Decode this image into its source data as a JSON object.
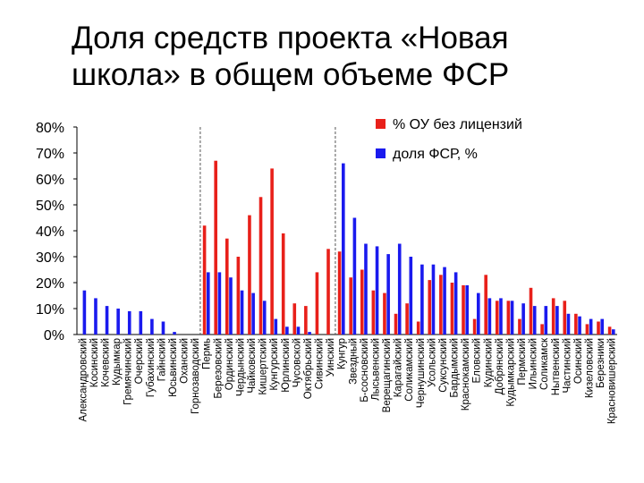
{
  "slide": {
    "title_line1": "Доля средств проекта «Новая",
    "title_line2": "школа» в общем объеме ФСР"
  },
  "colors": {
    "red_series": "#e8201a",
    "blue_series": "#1a1aee",
    "divider": "#555555"
  },
  "chart_data": {
    "type": "bar",
    "title": "",
    "xlabel": "",
    "ylabel": "",
    "ylim": [
      0,
      80
    ],
    "yticks": [
      "0%",
      "10%",
      "20%",
      "30%",
      "40%",
      "50%",
      "60%",
      "70%",
      "80%"
    ],
    "grid": false,
    "legend_position": "top-right",
    "category_groups": [
      {
        "from": "Александровский",
        "to": "Горнозаводский"
      },
      {
        "from": "Пермь",
        "to": "Уинский"
      },
      {
        "from": "Кунгур",
        "to": "Красновишерский"
      }
    ],
    "categories": [
      "Александровский",
      "Косинский",
      "Кочевский",
      "Кудымкар",
      "Гремячинский",
      "Очерский",
      "Губахинский",
      "Гайнский",
      "Юсьвинский",
      "Оханский",
      "Горнозаводский",
      "Пермь",
      "Березовский",
      "Ординский",
      "Чердынский",
      "Чайковский",
      "Кишертский",
      "Кунгурский",
      "Юрлинский",
      "Чусовской",
      "Октябрьский",
      "Сивинский",
      "Уинский",
      "Кунгур",
      "Звездный",
      "Б-сосновский",
      "Лысьвенский",
      "Верещагинский",
      "Карагайский",
      "Соликамский",
      "Чернушинский",
      "Усольский",
      "Суксунский",
      "Бардымский",
      "Краснокамский",
      "Еловский",
      "Кудинский",
      "Добрянский",
      "Кудымкарский",
      "Пермский",
      "Ильинский",
      "Соликамск",
      "Нытвенский",
      "Частинский",
      "Осинский",
      "Кизеловский",
      "Березники",
      "Красновишерский"
    ],
    "series": [
      {
        "name": "% ОУ без лицензий",
        "color": "#e8201a",
        "values": [
          0,
          0,
          0,
          0,
          0,
          0,
          0,
          0,
          0,
          0,
          0,
          42,
          67,
          37,
          30,
          46,
          53,
          64,
          39,
          12,
          11,
          24,
          33,
          32,
          22,
          25,
          17,
          16,
          8,
          12,
          5,
          21,
          23,
          20,
          19,
          6,
          23,
          13,
          13,
          6,
          18,
          4,
          14,
          13,
          8,
          4,
          5,
          3
        ]
      },
      {
        "name": "доля ФСР, %",
        "color": "#1a1aee",
        "values": [
          17,
          14,
          11,
          10,
          9,
          9,
          6,
          5,
          1,
          0,
          0,
          24,
          24,
          22,
          17,
          16,
          13,
          6,
          3,
          3,
          1,
          0,
          0,
          66,
          45,
          35,
          34,
          31,
          35,
          30,
          27,
          27,
          26,
          24,
          19,
          16,
          14,
          14,
          13,
          12,
          11,
          11,
          11,
          8,
          7,
          6,
          6,
          2
        ]
      }
    ]
  }
}
